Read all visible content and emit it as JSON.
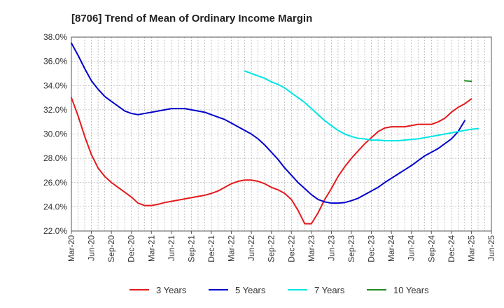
{
  "chart_data": {
    "type": "line",
    "title": "[8706]  Trend of Mean of Ordinary Income Margin",
    "xlabel": "",
    "ylabel": "",
    "ylim": [
      22.0,
      38.0
    ],
    "y_ticks": [
      "22.0%",
      "24.0%",
      "26.0%",
      "28.0%",
      "30.0%",
      "32.0%",
      "34.0%",
      "36.0%",
      "38.0%"
    ],
    "x_ticks": [
      "Mar-20",
      "Jun-20",
      "Sep-20",
      "Dec-20",
      "Mar-21",
      "Jun-21",
      "Sep-21",
      "Dec-21",
      "Mar-22",
      "Jun-22",
      "Sep-22",
      "Dec-22",
      "Mar-23",
      "Jun-23",
      "Sep-23",
      "Dec-23",
      "Mar-24",
      "Jun-24",
      "Sep-24",
      "Dec-24",
      "Mar-25",
      "Jun-25"
    ],
    "grid": true,
    "legend_position": "bottom",
    "series": [
      {
        "name": "3 Years",
        "color": "#e41a1c",
        "values": [
          33.0,
          31.5,
          29.8,
          28.3,
          27.2,
          26.5,
          26.0,
          25.6,
          25.2,
          24.8,
          24.3,
          24.1,
          24.1,
          24.2,
          24.35,
          24.45,
          24.55,
          24.65,
          24.75,
          24.85,
          24.95,
          25.1,
          25.3,
          25.6,
          25.9,
          26.1,
          26.2,
          26.2,
          26.1,
          25.9,
          25.6,
          25.4,
          25.1,
          24.6,
          23.7,
          22.6,
          22.6,
          23.5,
          24.6,
          25.5,
          26.5,
          27.3,
          28.0,
          28.6,
          29.2,
          29.7,
          30.2,
          30.5,
          30.6,
          30.6,
          30.6,
          30.7,
          30.8,
          30.8,
          30.8,
          31.0,
          31.3,
          31.8,
          32.2,
          32.5,
          32.9
        ]
      },
      {
        "name": "5 Years",
        "color": "#0000cc",
        "values": [
          37.5,
          36.5,
          35.4,
          34.4,
          33.7,
          33.1,
          32.7,
          32.3,
          31.9,
          31.7,
          31.6,
          31.7,
          31.8,
          31.9,
          32.0,
          32.1,
          32.1,
          32.1,
          32.0,
          31.9,
          31.8,
          31.6,
          31.4,
          31.2,
          30.9,
          30.6,
          30.3,
          30.0,
          29.6,
          29.1,
          28.5,
          27.9,
          27.2,
          26.6,
          26.0,
          25.5,
          25.0,
          24.6,
          24.4,
          24.3,
          24.3,
          24.35,
          24.5,
          24.7,
          25.0,
          25.3,
          25.6,
          26.0,
          26.35,
          26.7,
          27.05,
          27.4,
          27.8,
          28.2,
          28.5,
          28.8,
          29.2,
          29.6,
          30.2,
          31.1
        ]
      },
      {
        "name": "7 Years",
        "color": "#00e5e5",
        "values": [
          null,
          null,
          null,
          null,
          null,
          null,
          null,
          null,
          null,
          null,
          null,
          null,
          null,
          null,
          null,
          null,
          null,
          null,
          null,
          null,
          null,
          null,
          null,
          null,
          null,
          null,
          35.2,
          35.0,
          34.8,
          34.6,
          34.3,
          34.1,
          33.8,
          33.4,
          33.0,
          32.6,
          32.1,
          31.6,
          31.1,
          30.7,
          30.3,
          30.0,
          29.8,
          29.65,
          29.6,
          29.5,
          29.5,
          29.45,
          29.45,
          29.45,
          29.5,
          29.55,
          29.6,
          29.7,
          29.8,
          29.9,
          30.0,
          30.1,
          30.2,
          30.3,
          30.4,
          30.45
        ]
      },
      {
        "name": "10 Years",
        "color": "#228b22",
        "values": [
          null,
          null,
          null,
          null,
          null,
          null,
          null,
          null,
          null,
          null,
          null,
          null,
          null,
          null,
          null,
          null,
          null,
          null,
          null,
          null,
          null,
          null,
          null,
          null,
          null,
          null,
          null,
          null,
          null,
          null,
          null,
          null,
          null,
          null,
          null,
          null,
          null,
          null,
          null,
          null,
          null,
          null,
          null,
          null,
          null,
          null,
          null,
          null,
          null,
          null,
          null,
          null,
          null,
          null,
          null,
          null,
          null,
          null,
          null,
          34.4,
          34.35
        ]
      }
    ]
  }
}
